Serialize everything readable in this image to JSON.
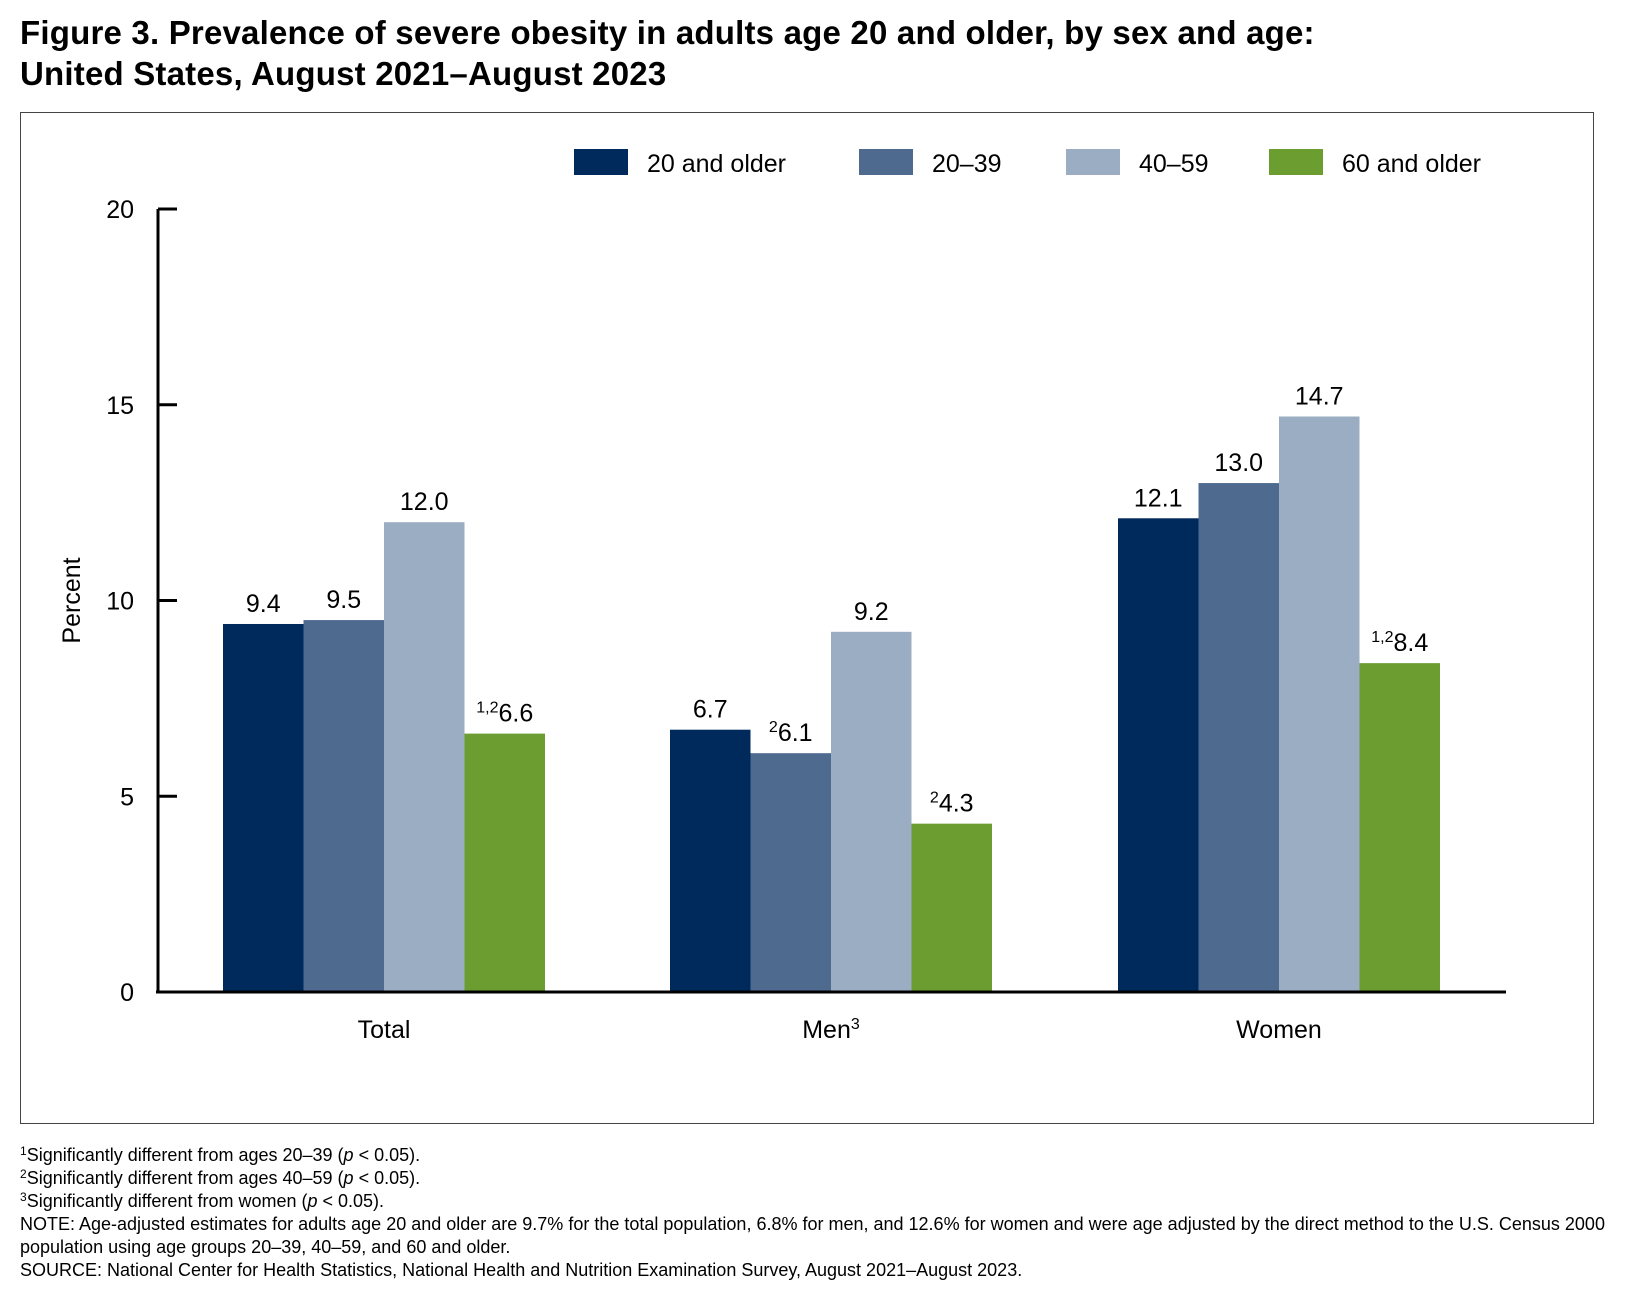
{
  "title": {
    "line1": "Figure 3. Prevalence of severe obesity in adults age 20 and older, by sex and age:",
    "line2": "United States, August 2021–August 2023"
  },
  "chart_data": {
    "type": "bar",
    "ylabel": "Percent",
    "ylim": [
      0,
      20
    ],
    "yticks": [
      "0",
      "5",
      "10",
      "15",
      "20"
    ],
    "grid": false,
    "legend_position": "top-right",
    "categories": [
      {
        "label": "Total",
        "sup": ""
      },
      {
        "label": "Men",
        "sup": "3"
      },
      {
        "label": "Women",
        "sup": ""
      }
    ],
    "series": [
      {
        "name": "20 and older",
        "color": "#002a5c",
        "values": [
          9.4,
          6.7,
          12.1
        ],
        "labels": [
          {
            "sup": "",
            "text": "9.4"
          },
          {
            "sup": "",
            "text": "6.7"
          },
          {
            "sup": "",
            "text": "12.1"
          }
        ]
      },
      {
        "name": "20–39",
        "color": "#4e6b8f",
        "values": [
          9.5,
          6.1,
          13.0
        ],
        "labels": [
          {
            "sup": "",
            "text": "9.5"
          },
          {
            "sup": "2",
            "text": "6.1"
          },
          {
            "sup": "",
            "text": "13.0"
          }
        ]
      },
      {
        "name": "40–59",
        "color": "#9aadc3",
        "values": [
          12.0,
          9.2,
          14.7
        ],
        "labels": [
          {
            "sup": "",
            "text": "12.0"
          },
          {
            "sup": "",
            "text": "9.2"
          },
          {
            "sup": "",
            "text": "14.7"
          }
        ]
      },
      {
        "name": "60 and older",
        "color": "#6b9d30",
        "values": [
          6.6,
          4.3,
          8.4
        ],
        "labels": [
          {
            "sup": "1,2",
            "text": "6.6"
          },
          {
            "sup": "2",
            "text": "4.3"
          },
          {
            "sup": "1,2",
            "text": "8.4"
          }
        ]
      }
    ]
  },
  "footnotes": {
    "fn1": {
      "sup": "1",
      "text": "Significantly different from ages 20–39 (",
      "p": "p",
      "tail": " < 0.05)."
    },
    "fn2": {
      "sup": "2",
      "text": "Significantly different from ages 40–59 (",
      "p": "p",
      "tail": " < 0.05)."
    },
    "fn3": {
      "sup": "3",
      "text": "Significantly different from women (",
      "p": "p",
      "tail": " < 0.05)."
    },
    "note": "NOTE: Age-adjusted estimates for adults age 20 and older are 9.7% for the total population, 6.8% for men, and 12.6% for women and were age adjusted by the direct method to the U.S. Census 2000 population using age groups 20–39, 40–59, and 60 and older.",
    "source": "SOURCE: National Center for Health Statistics, National Health and Nutrition Examination Survey, August 2021–August 2023."
  }
}
